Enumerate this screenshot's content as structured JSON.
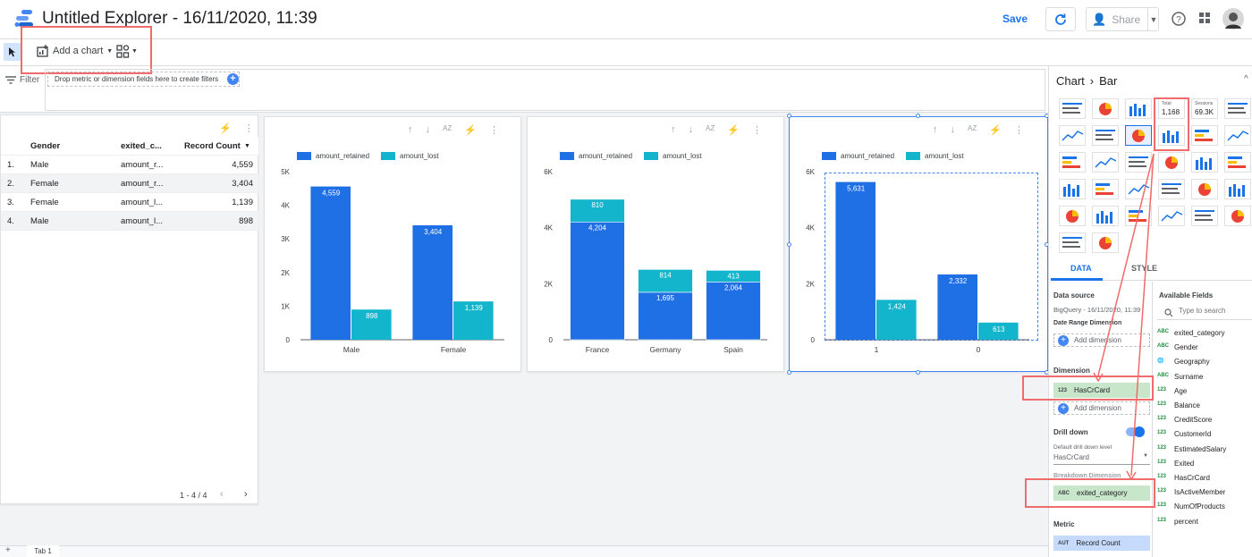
{
  "header": {
    "title": "Untitled Explorer - 16/11/2020, 11:39",
    "save_label": "Save",
    "share_label": "Share"
  },
  "toolbar": {
    "add_chart_label": "Add a chart"
  },
  "filter": {
    "label": "Filter",
    "drop_text": "Drop metric or dimension fields here to create filters"
  },
  "table": {
    "headers": [
      "Gender",
      "exited_c...",
      "Record Count"
    ],
    "rows": [
      {
        "n": "1.",
        "gender": "Male",
        "cat": "amount_r...",
        "count": "4,559"
      },
      {
        "n": "2.",
        "gender": "Female",
        "cat": "amount_r...",
        "count": "3,404"
      },
      {
        "n": "3.",
        "gender": "Female",
        "cat": "amount_l...",
        "count": "1,139"
      },
      {
        "n": "4.",
        "gender": "Male",
        "cat": "amount_l...",
        "count": "898"
      }
    ],
    "pagination": "1 - 4 / 4"
  },
  "chart_data": [
    {
      "type": "bar",
      "categories": [
        "Male",
        "Female"
      ],
      "series": [
        {
          "name": "amount_retained",
          "values": [
            4559,
            3404
          ]
        },
        {
          "name": "amount_lost",
          "values": [
            898,
            1139
          ]
        }
      ],
      "ylim": [
        0,
        5000
      ],
      "yticks": [
        "0",
        "1K",
        "2K",
        "3K",
        "4K",
        "5K"
      ],
      "stacked": false
    },
    {
      "type": "bar",
      "categories": [
        "France",
        "Germany",
        "Spain"
      ],
      "series": [
        {
          "name": "amount_retained",
          "values": [
            4204,
            1695,
            2064
          ]
        },
        {
          "name": "amount_lost",
          "values": [
            810,
            814,
            413
          ]
        }
      ],
      "ylim": [
        0,
        6000
      ],
      "yticks": [
        "0",
        "2K",
        "4K",
        "6K"
      ],
      "stacked": true
    },
    {
      "type": "bar",
      "categories": [
        "1",
        "0"
      ],
      "series": [
        {
          "name": "amount_retained",
          "values": [
            5631,
            2332
          ]
        },
        {
          "name": "amount_lost",
          "values": [
            1424,
            613
          ]
        }
      ],
      "ylim": [
        0,
        6000
      ],
      "yticks": [
        "0",
        "2K",
        "4K",
        "6K"
      ],
      "stacked": false
    }
  ],
  "colors": {
    "retained": "#1f6fe5",
    "lost": "#12b5cb",
    "accent": "#1a73e8",
    "highlight": "#f06b6b"
  },
  "panel": {
    "breadcrumb_chart": "Chart",
    "breadcrumb_type": "Bar",
    "scorecard_total_label": "Total",
    "scorecard_total_value": "1,168",
    "scorecard_sessions_label": "Sessions",
    "scorecard_sessions_value": "69.3K",
    "tab_data": "DATA",
    "tab_style": "STYLE",
    "data_source_label": "Data source",
    "data_source_value": "BigQuery - 16/11/2020, 11:39",
    "date_range_label": "Date Range Dimension",
    "add_dimension": "Add dimension",
    "dimension_label": "Dimension",
    "dimension_value": "HasCrCard",
    "drill_down_label": "Drill down",
    "default_drill_label": "Default drill down level",
    "default_drill_value": "HasCrCard",
    "breakdown_label": "Breakdown Dimension",
    "breakdown_value": "exited_category",
    "metric_label": "Metric",
    "metric_value": "Record Count",
    "available_label": "Available Fields",
    "search_placeholder": "Type to search",
    "fields": [
      {
        "type": "ABC",
        "name": "exited_category"
      },
      {
        "type": "ABC",
        "name": "Gender"
      },
      {
        "type": "GEO",
        "name": "Geography"
      },
      {
        "type": "ABC",
        "name": "Surname"
      },
      {
        "type": "123",
        "name": "Age"
      },
      {
        "type": "123",
        "name": "Balance"
      },
      {
        "type": "123",
        "name": "CreditScore"
      },
      {
        "type": "123",
        "name": "CustomerId"
      },
      {
        "type": "123",
        "name": "EstimatedSalary"
      },
      {
        "type": "123",
        "name": "Exited"
      },
      {
        "type": "123",
        "name": "HasCrCard"
      },
      {
        "type": "123",
        "name": "IsActiveMember"
      },
      {
        "type": "123",
        "name": "NumOfProducts"
      },
      {
        "type": "123",
        "name": "percent"
      }
    ]
  },
  "tabs": {
    "tab1": "Tab 1"
  }
}
